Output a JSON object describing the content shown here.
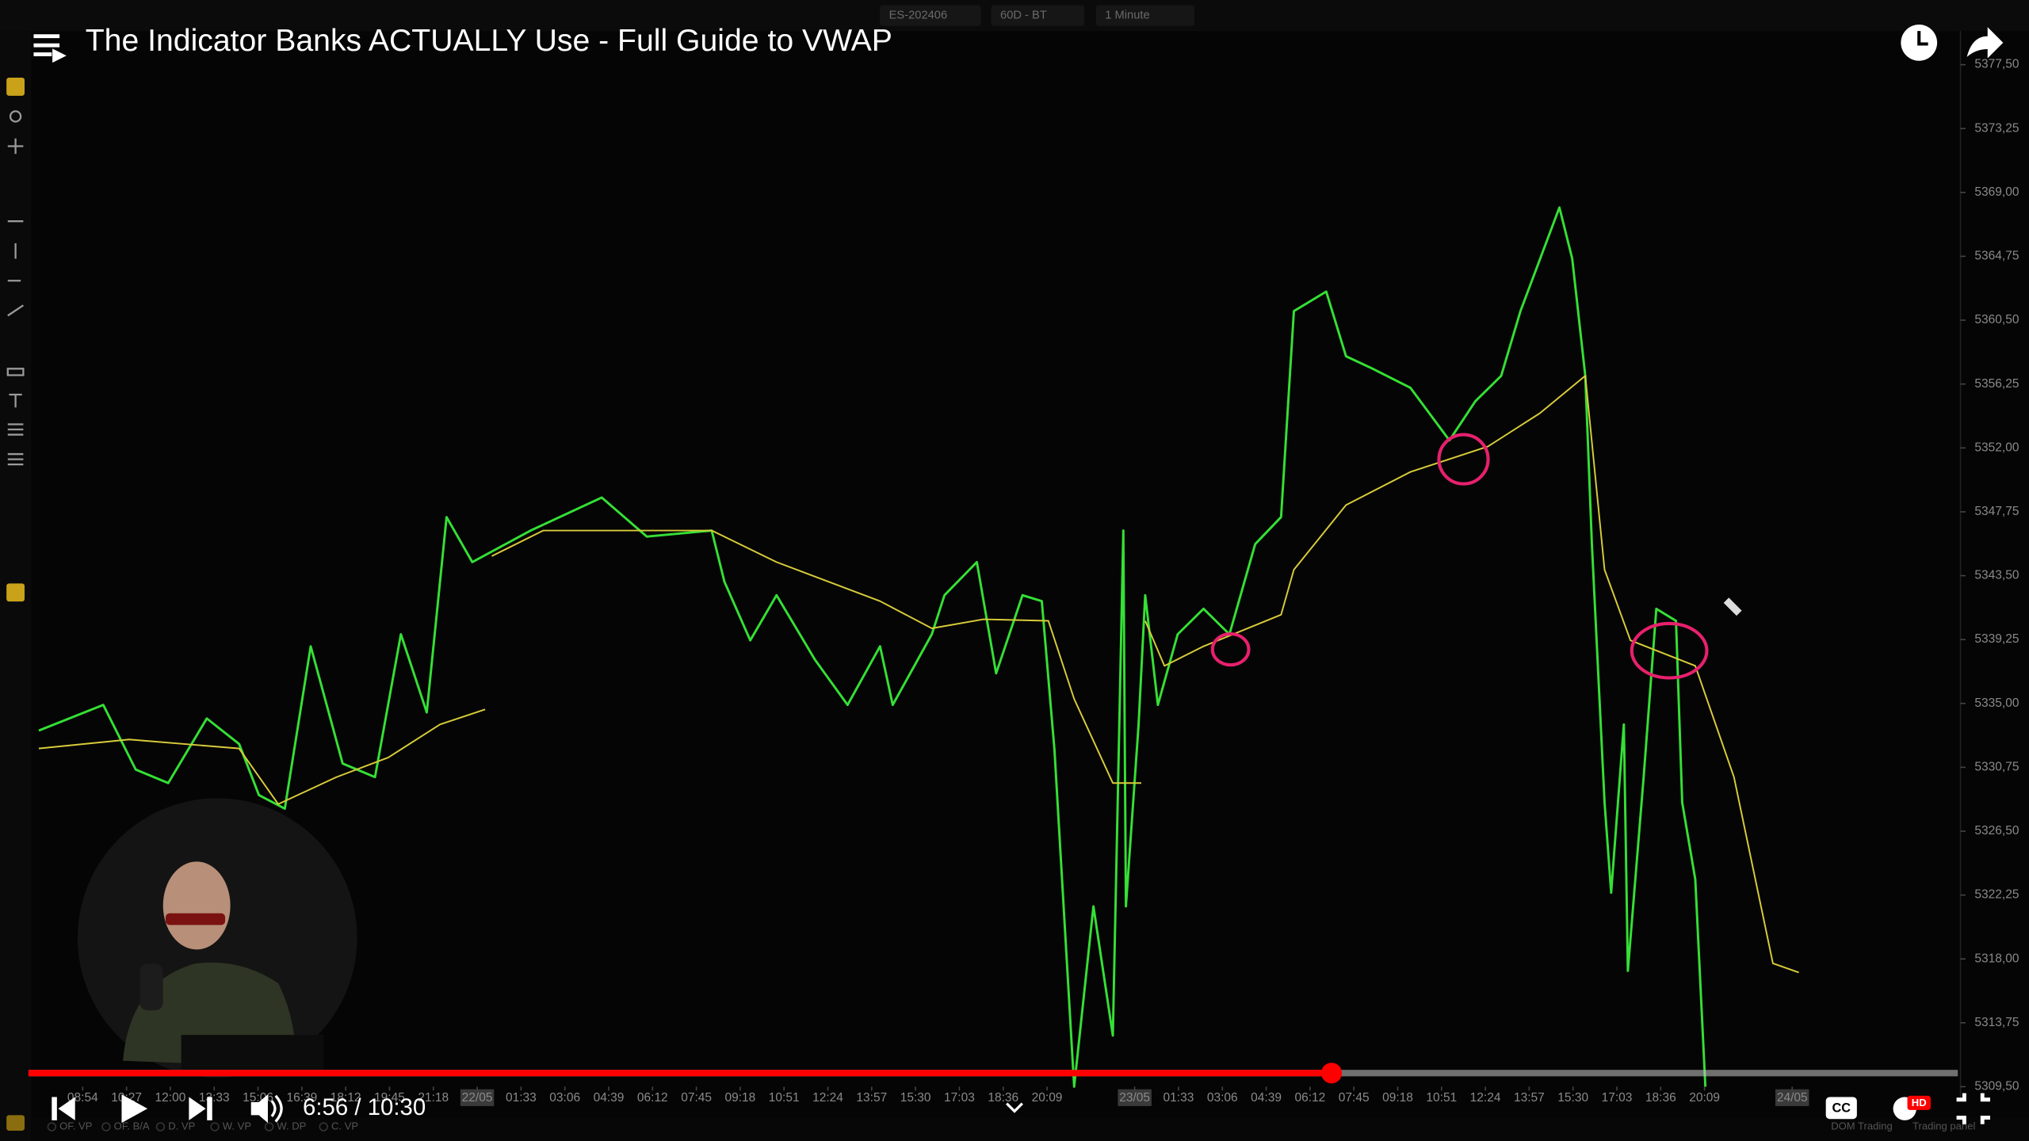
{
  "video": {
    "title": "The Indicator Banks ACTUALLY Use - Full Guide to VWAP",
    "time": "6:56 / 10:30"
  },
  "toolbar": {
    "instrument": "ES-202406",
    "period": "60D - BT",
    "timeframe": "1 Minute"
  },
  "indicators": [
    "OF. VP",
    "OF. B/A",
    "D. VP",
    "W. VP",
    "W. DP",
    "C. VP"
  ],
  "panel": {
    "dom": "DOM Trading",
    "trading": "Trading panel"
  },
  "chart_data": {
    "type": "line",
    "xlim": [
      -1.06,
      42.69
    ],
    "xticks": [
      {
        "value": 0,
        "label": "08:54"
      },
      {
        "value": 1,
        "label": "10:27"
      },
      {
        "value": 2,
        "label": "12:00"
      },
      {
        "value": 3,
        "label": "13:33"
      },
      {
        "value": 4,
        "label": "15:06"
      },
      {
        "value": 5,
        "label": "16:39"
      },
      {
        "value": 6,
        "label": "18:12"
      },
      {
        "value": 7,
        "label": "19:45"
      },
      {
        "value": 8,
        "label": "21:18"
      },
      {
        "value": 9,
        "label": "22/05"
      },
      {
        "value": 10,
        "label": "01:33"
      },
      {
        "value": 11,
        "label": "03:06"
      },
      {
        "value": 12,
        "label": "04:39"
      },
      {
        "value": 13,
        "label": "06:12"
      },
      {
        "value": 14,
        "label": "07:45"
      },
      {
        "value": 15,
        "label": "09:18"
      },
      {
        "value": 16,
        "label": "10:51"
      },
      {
        "value": 17,
        "label": "12:24"
      },
      {
        "value": 18,
        "label": "13:57"
      },
      {
        "value": 19,
        "label": "15:30"
      },
      {
        "value": 20,
        "label": "17:03"
      },
      {
        "value": 21,
        "label": "18:36"
      },
      {
        "value": 22,
        "label": "20:09"
      },
      {
        "value": 24,
        "label": "23/05"
      },
      {
        "value": 25,
        "label": "01:33"
      },
      {
        "value": 26,
        "label": "03:06"
      },
      {
        "value": 27,
        "label": "04:39"
      },
      {
        "value": 28,
        "label": "06:12"
      },
      {
        "value": 29,
        "label": "07:45"
      },
      {
        "value": 30,
        "label": "09:18"
      },
      {
        "value": 31,
        "label": "10:51"
      },
      {
        "value": 32,
        "label": "12:24"
      },
      {
        "value": 33,
        "label": "13:57"
      },
      {
        "value": 34,
        "label": "15:30"
      },
      {
        "value": 35,
        "label": "17:03"
      },
      {
        "value": 36,
        "label": "18:36"
      },
      {
        "value": 37,
        "label": "20:09"
      },
      {
        "value": 39,
        "label": "24/05"
      }
    ],
    "ylim": [
      5309.5,
      5377.5
    ],
    "yticks": [
      {
        "value": 5377.5,
        "label": "5377,50"
      },
      {
        "value": 5373.25,
        "label": "5373,25"
      },
      {
        "value": 5369,
        "label": "5369,00"
      },
      {
        "value": 5364.75,
        "label": "5364,75"
      },
      {
        "value": 5360.5,
        "label": "5360,50"
      },
      {
        "value": 5356.25,
        "label": "5356,25"
      },
      {
        "value": 5352,
        "label": "5352,00"
      },
      {
        "value": 5347.75,
        "label": "5347,75"
      },
      {
        "value": 5343.5,
        "label": "5343,50"
      },
      {
        "value": 5339.25,
        "label": "5339,25"
      },
      {
        "value": 5335,
        "label": "5335,00"
      },
      {
        "value": 5330.75,
        "label": "5330,75"
      },
      {
        "value": 5326.5,
        "label": "5326,50"
      },
      {
        "value": 5322.25,
        "label": "5322,25"
      },
      {
        "value": 5318,
        "label": "5318,00"
      },
      {
        "value": 5313.75,
        "label": "5313,75"
      },
      {
        "value": 5309.5,
        "label": "5309,50"
      }
    ],
    "series": [
      {
        "color": "#35e035",
        "x": [
          -1.0,
          0.47,
          1.21,
          1.95,
          2.83,
          3.57,
          4.02,
          4.61,
          5.2,
          5.93,
          6.67,
          7.26,
          7.85,
          8.3,
          8.89,
          10.22,
          11.84,
          12.87,
          14.35,
          14.64,
          15.23,
          15.83,
          16.71,
          17.45,
          18.19,
          18.48,
          19.37,
          19.66,
          20.4,
          20.84,
          21.44,
          21.88,
          22.17,
          22.62,
          23.06,
          23.5,
          23.74,
          23.8,
          24.09,
          24.24,
          24.53,
          24.98,
          25.57,
          26.16,
          26.75,
          27.34,
          27.63,
          28.37,
          28.82,
          29.41,
          30.29,
          31.18,
          31.77,
          32.36,
          32.8,
          33.69,
          33.98,
          34.28,
          34.43,
          34.72,
          34.87,
          35.16,
          35.25,
          35.61,
          35.9,
          36.35,
          36.49,
          36.79,
          37.02
        ],
        "values": [
          5333.2,
          5334.9,
          5330.6,
          5329.7,
          5334.0,
          5332.3,
          5328.9,
          5328.0,
          5338.8,
          5331.0,
          5330.1,
          5339.6,
          5334.4,
          5347.4,
          5344.4,
          5346.5,
          5348.7,
          5346.1,
          5346.5,
          5343.1,
          5339.2,
          5342.2,
          5337.9,
          5334.9,
          5338.8,
          5334.9,
          5339.6,
          5342.2,
          5344.4,
          5337.0,
          5342.2,
          5341.8,
          5331.9,
          5309.5,
          5321.5,
          5312.9,
          5346.5,
          5321.5,
          5333.6,
          5342.2,
          5334.9,
          5339.6,
          5341.3,
          5339.6,
          5345.6,
          5347.4,
          5361.1,
          5362.4,
          5358.1,
          5357.3,
          5356.0,
          5352.5,
          5355.1,
          5356.8,
          5361.1,
          5368.0,
          5364.6,
          5356.8,
          5345.6,
          5328.4,
          5322.4,
          5333.6,
          5317.2,
          5330.1,
          5341.3,
          5340.5,
          5328.4,
          5323.3,
          5309.5
        ]
      },
      {
        "color": "#d8cc3a",
        "x": [
          -1.0,
          1.06,
          3.57,
          4.46,
          5.79,
          6.97,
          8.15,
          9.18,
          null,
          9.33,
          10.51,
          14.35,
          15.83,
          18.19,
          19.37,
          20.55,
          22.03,
          22.62,
          23.5,
          24.15,
          null,
          24.24,
          24.68,
          25.57,
          27.34,
          27.63,
          28.82,
          30.29,
          32.06,
          33.24,
          34.28,
          34.72,
          35.31,
          36.79,
          37.67,
          38.56,
          39.15
        ],
        "values": [
          5332.0,
          5332.6,
          5332.0,
          5328.3,
          5330.1,
          5331.4,
          5333.6,
          5334.6,
          null,
          5344.8,
          5346.5,
          5346.5,
          5344.4,
          5341.8,
          5340.0,
          5340.6,
          5340.5,
          5335.3,
          5329.7,
          5329.7,
          null,
          5340.5,
          5337.5,
          5338.8,
          5340.9,
          5343.9,
          5348.2,
          5350.4,
          5352.1,
          5354.3,
          5356.8,
          5343.9,
          5339.2,
          5337.5,
          5330.1,
          5317.7,
          5317.1
        ]
      }
    ]
  }
}
